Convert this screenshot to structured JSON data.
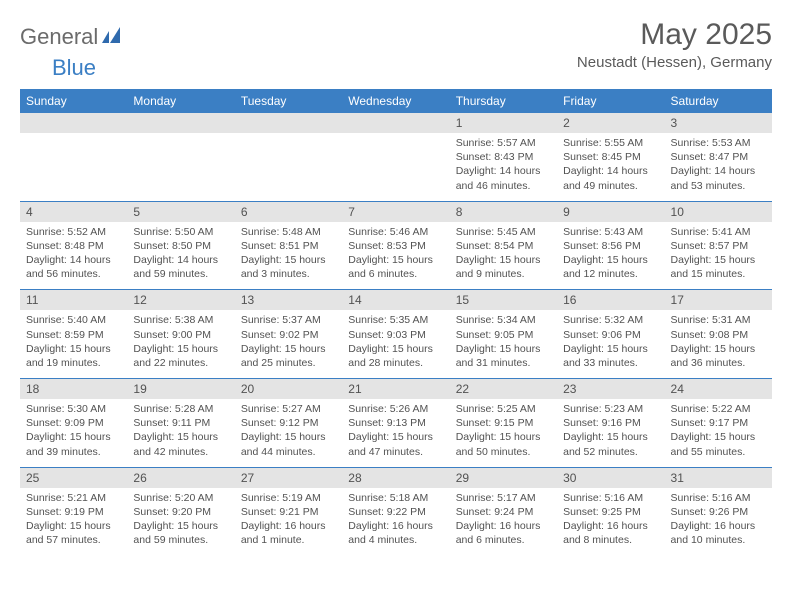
{
  "header": {
    "logo_general": "General",
    "logo_blue": "Blue",
    "title": "May 2025",
    "location": "Neustadt (Hessen), Germany"
  },
  "colors": {
    "header_bg": "#3b7fc4",
    "header_text": "#ffffff",
    "date_bg": "#e4e4e4",
    "text": "#525252",
    "divider": "#3b7fc4"
  },
  "weekdays": [
    "Sunday",
    "Monday",
    "Tuesday",
    "Wednesday",
    "Thursday",
    "Friday",
    "Saturday"
  ],
  "weeks": [
    {
      "dates": [
        "",
        "",
        "",
        "",
        "1",
        "2",
        "3"
      ],
      "info": [
        "",
        "",
        "",
        "",
        "Sunrise: 5:57 AM\nSunset: 8:43 PM\nDaylight: 14 hours and 46 minutes.",
        "Sunrise: 5:55 AM\nSunset: 8:45 PM\nDaylight: 14 hours and 49 minutes.",
        "Sunrise: 5:53 AM\nSunset: 8:47 PM\nDaylight: 14 hours and 53 minutes."
      ]
    },
    {
      "dates": [
        "4",
        "5",
        "6",
        "7",
        "8",
        "9",
        "10"
      ],
      "info": [
        "Sunrise: 5:52 AM\nSunset: 8:48 PM\nDaylight: 14 hours and 56 minutes.",
        "Sunrise: 5:50 AM\nSunset: 8:50 PM\nDaylight: 14 hours and 59 minutes.",
        "Sunrise: 5:48 AM\nSunset: 8:51 PM\nDaylight: 15 hours and 3 minutes.",
        "Sunrise: 5:46 AM\nSunset: 8:53 PM\nDaylight: 15 hours and 6 minutes.",
        "Sunrise: 5:45 AM\nSunset: 8:54 PM\nDaylight: 15 hours and 9 minutes.",
        "Sunrise: 5:43 AM\nSunset: 8:56 PM\nDaylight: 15 hours and 12 minutes.",
        "Sunrise: 5:41 AM\nSunset: 8:57 PM\nDaylight: 15 hours and 15 minutes."
      ]
    },
    {
      "dates": [
        "11",
        "12",
        "13",
        "14",
        "15",
        "16",
        "17"
      ],
      "info": [
        "Sunrise: 5:40 AM\nSunset: 8:59 PM\nDaylight: 15 hours and 19 minutes.",
        "Sunrise: 5:38 AM\nSunset: 9:00 PM\nDaylight: 15 hours and 22 minutes.",
        "Sunrise: 5:37 AM\nSunset: 9:02 PM\nDaylight: 15 hours and 25 minutes.",
        "Sunrise: 5:35 AM\nSunset: 9:03 PM\nDaylight: 15 hours and 28 minutes.",
        "Sunrise: 5:34 AM\nSunset: 9:05 PM\nDaylight: 15 hours and 31 minutes.",
        "Sunrise: 5:32 AM\nSunset: 9:06 PM\nDaylight: 15 hours and 33 minutes.",
        "Sunrise: 5:31 AM\nSunset: 9:08 PM\nDaylight: 15 hours and 36 minutes."
      ]
    },
    {
      "dates": [
        "18",
        "19",
        "20",
        "21",
        "22",
        "23",
        "24"
      ],
      "info": [
        "Sunrise: 5:30 AM\nSunset: 9:09 PM\nDaylight: 15 hours and 39 minutes.",
        "Sunrise: 5:28 AM\nSunset: 9:11 PM\nDaylight: 15 hours and 42 minutes.",
        "Sunrise: 5:27 AM\nSunset: 9:12 PM\nDaylight: 15 hours and 44 minutes.",
        "Sunrise: 5:26 AM\nSunset: 9:13 PM\nDaylight: 15 hours and 47 minutes.",
        "Sunrise: 5:25 AM\nSunset: 9:15 PM\nDaylight: 15 hours and 50 minutes.",
        "Sunrise: 5:23 AM\nSunset: 9:16 PM\nDaylight: 15 hours and 52 minutes.",
        "Sunrise: 5:22 AM\nSunset: 9:17 PM\nDaylight: 15 hours and 55 minutes."
      ]
    },
    {
      "dates": [
        "25",
        "26",
        "27",
        "28",
        "29",
        "30",
        "31"
      ],
      "info": [
        "Sunrise: 5:21 AM\nSunset: 9:19 PM\nDaylight: 15 hours and 57 minutes.",
        "Sunrise: 5:20 AM\nSunset: 9:20 PM\nDaylight: 15 hours and 59 minutes.",
        "Sunrise: 5:19 AM\nSunset: 9:21 PM\nDaylight: 16 hours and 1 minute.",
        "Sunrise: 5:18 AM\nSunset: 9:22 PM\nDaylight: 16 hours and 4 minutes.",
        "Sunrise: 5:17 AM\nSunset: 9:24 PM\nDaylight: 16 hours and 6 minutes.",
        "Sunrise: 5:16 AM\nSunset: 9:25 PM\nDaylight: 16 hours and 8 minutes.",
        "Sunrise: 5:16 AM\nSunset: 9:26 PM\nDaylight: 16 hours and 10 minutes."
      ]
    }
  ]
}
